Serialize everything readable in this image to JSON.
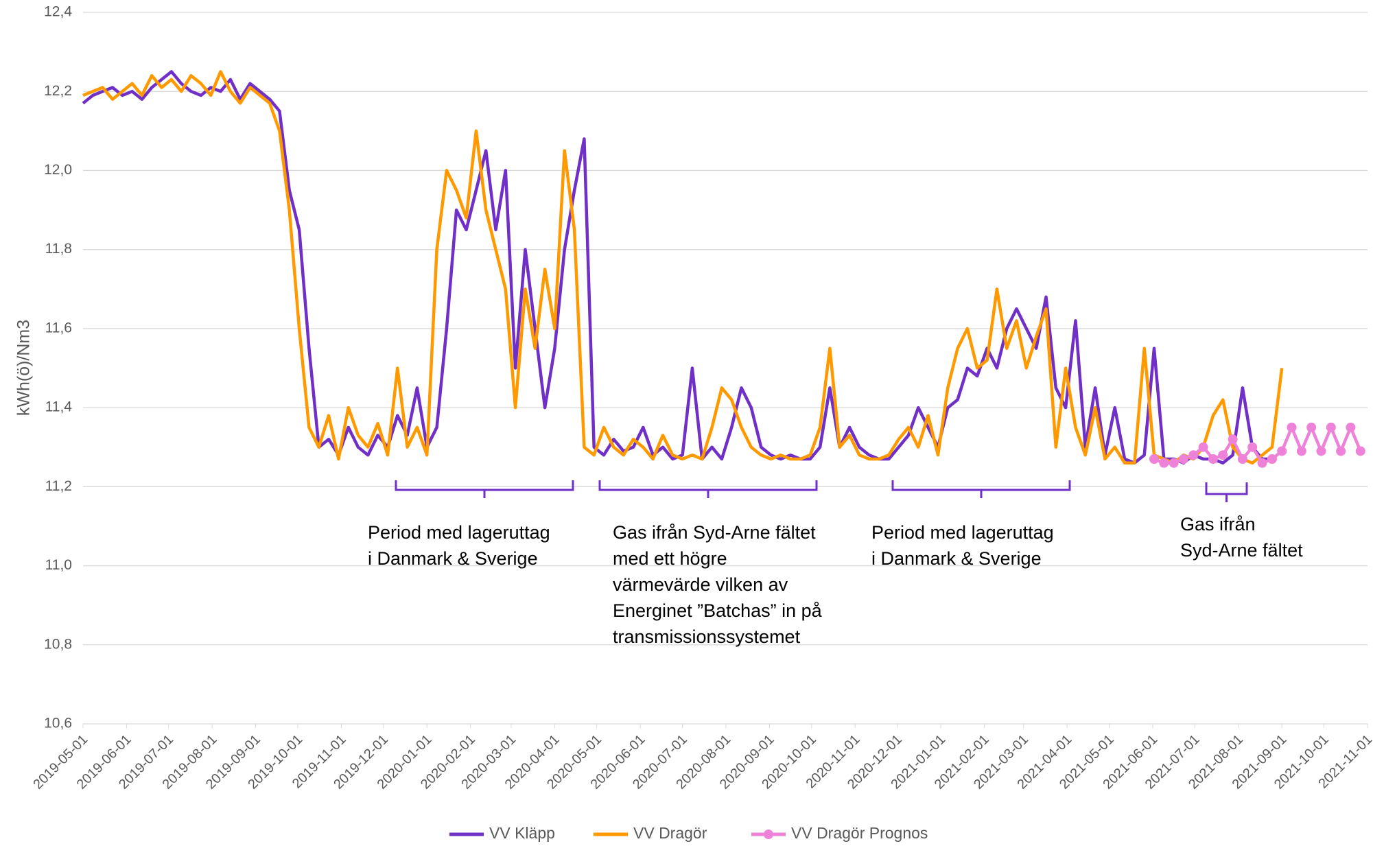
{
  "chart_data": {
    "type": "line",
    "y_label": "kWh(ö)/Nm3",
    "ylim": [
      10.6,
      12.4
    ],
    "yticks": [
      {
        "value": 10.6,
        "label": "10,6"
      },
      {
        "value": 10.8,
        "label": "10,8"
      },
      {
        "value": 11.0,
        "label": "11,0"
      },
      {
        "value": 11.2,
        "label": "11,2"
      },
      {
        "value": 11.4,
        "label": "11,4"
      },
      {
        "value": 11.6,
        "label": "11,6"
      },
      {
        "value": 11.8,
        "label": "11,8"
      },
      {
        "value": 12.0,
        "label": "12,0"
      },
      {
        "value": 12.2,
        "label": "12,2"
      },
      {
        "value": 12.4,
        "label": "12,4"
      }
    ],
    "xlim": [
      "2019-05-01",
      "2021-11-01"
    ],
    "xticks": [
      "2019-05-01",
      "2019-06-01",
      "2019-07-01",
      "2019-08-01",
      "2019-09-01",
      "2019-10-01",
      "2019-11-01",
      "2019-12-01",
      "2020-01-01",
      "2020-02-01",
      "2020-03-01",
      "2020-04-01",
      "2020-05-01",
      "2020-06-01",
      "2020-07-01",
      "2020-08-01",
      "2020-09-01",
      "2020-10-01",
      "2020-11-01",
      "2020-12-01",
      "2021-01-01",
      "2021-02-01",
      "2021-03-01",
      "2021-04-01",
      "2021-05-01",
      "2021-06-01",
      "2021-07-01",
      "2021-08-01",
      "2021-09-01",
      "2021-10-01",
      "2021-11-01"
    ],
    "grid": true,
    "legend": "bottom",
    "x": [
      "2019-05-01",
      "2019-05-08",
      "2019-05-15",
      "2019-05-22",
      "2019-05-29",
      "2019-06-05",
      "2019-06-12",
      "2019-06-19",
      "2019-06-26",
      "2019-07-03",
      "2019-07-10",
      "2019-07-17",
      "2019-07-24",
      "2019-07-31",
      "2019-08-07",
      "2019-08-14",
      "2019-08-21",
      "2019-08-28",
      "2019-09-04",
      "2019-09-11",
      "2019-09-18",
      "2019-09-25",
      "2019-10-02",
      "2019-10-09",
      "2019-10-16",
      "2019-10-23",
      "2019-10-30",
      "2019-11-06",
      "2019-11-13",
      "2019-11-20",
      "2019-11-27",
      "2019-12-04",
      "2019-12-11",
      "2019-12-18",
      "2019-12-25",
      "2020-01-01",
      "2020-01-08",
      "2020-01-15",
      "2020-01-22",
      "2020-01-29",
      "2020-02-05",
      "2020-02-12",
      "2020-02-19",
      "2020-02-26",
      "2020-03-04",
      "2020-03-11",
      "2020-03-18",
      "2020-03-25",
      "2020-04-01",
      "2020-04-08",
      "2020-04-15",
      "2020-04-22",
      "2020-04-29",
      "2020-05-06",
      "2020-05-13",
      "2020-05-20",
      "2020-05-27",
      "2020-06-03",
      "2020-06-10",
      "2020-06-17",
      "2020-06-24",
      "2020-07-01",
      "2020-07-08",
      "2020-07-15",
      "2020-07-22",
      "2020-07-29",
      "2020-08-05",
      "2020-08-12",
      "2020-08-19",
      "2020-08-26",
      "2020-09-02",
      "2020-09-09",
      "2020-09-16",
      "2020-09-23",
      "2020-09-30",
      "2020-10-07",
      "2020-10-14",
      "2020-10-21",
      "2020-10-28",
      "2020-11-04",
      "2020-11-11",
      "2020-11-18",
      "2020-11-25",
      "2020-12-02",
      "2020-12-09",
      "2020-12-16",
      "2020-12-23",
      "2020-12-30",
      "2021-01-06",
      "2021-01-13",
      "2021-01-20",
      "2021-01-27",
      "2021-02-03",
      "2021-02-10",
      "2021-02-17",
      "2021-02-24",
      "2021-03-03",
      "2021-03-10",
      "2021-03-17",
      "2021-03-24",
      "2021-03-31",
      "2021-04-07",
      "2021-04-14",
      "2021-04-21",
      "2021-04-28",
      "2021-05-05",
      "2021-05-12",
      "2021-05-19",
      "2021-05-26",
      "2021-06-02",
      "2021-06-09",
      "2021-06-16",
      "2021-06-23",
      "2021-06-30",
      "2021-07-07",
      "2021-07-14",
      "2021-07-21",
      "2021-07-28",
      "2021-08-04",
      "2021-08-11",
      "2021-08-18",
      "2021-08-25",
      "2021-09-01",
      "2021-09-08",
      "2021-09-15",
      "2021-09-22",
      "2021-09-29",
      "2021-10-06",
      "2021-10-13",
      "2021-10-20",
      "2021-10-27"
    ],
    "series": [
      {
        "name": "VV Kläpp",
        "color": "#7030c8",
        "marker": false,
        "values": [
          12.17,
          12.19,
          12.2,
          12.21,
          12.19,
          12.2,
          12.18,
          12.21,
          12.23,
          12.25,
          12.22,
          12.2,
          12.19,
          12.21,
          12.2,
          12.23,
          12.18,
          12.22,
          12.2,
          12.18,
          12.15,
          11.95,
          11.85,
          11.55,
          11.3,
          11.32,
          11.28,
          11.35,
          11.3,
          11.28,
          11.33,
          11.3,
          11.38,
          11.33,
          11.45,
          11.3,
          11.35,
          11.6,
          11.9,
          11.85,
          11.95,
          12.05,
          11.85,
          12.0,
          11.5,
          11.8,
          11.6,
          11.4,
          11.55,
          11.8,
          11.95,
          12.08,
          11.3,
          11.28,
          11.32,
          11.29,
          11.3,
          11.35,
          11.28,
          11.3,
          11.27,
          11.28,
          11.5,
          11.27,
          11.3,
          11.27,
          11.35,
          11.45,
          11.4,
          11.3,
          11.28,
          11.27,
          11.28,
          11.27,
          11.27,
          11.3,
          11.45,
          11.3,
          11.35,
          11.3,
          11.28,
          11.27,
          11.27,
          11.3,
          11.33,
          11.4,
          11.35,
          11.3,
          11.4,
          11.42,
          11.5,
          11.48,
          11.55,
          11.5,
          11.6,
          11.65,
          11.6,
          11.55,
          11.68,
          11.45,
          11.4,
          11.62,
          11.3,
          11.45,
          11.28,
          11.4,
          11.27,
          11.26,
          11.28,
          11.55,
          11.27,
          11.27,
          11.26,
          11.28,
          11.27,
          11.27,
          11.26,
          11.28,
          11.45,
          11.3,
          11.27,
          11.27,
          null,
          null,
          null,
          null,
          null,
          null,
          null,
          null,
          null
        ]
      },
      {
        "name": "VV Dragör",
        "color": "#ff9900",
        "marker": false,
        "values": [
          12.19,
          12.2,
          12.21,
          12.18,
          12.2,
          12.22,
          12.19,
          12.24,
          12.21,
          12.23,
          12.2,
          12.24,
          12.22,
          12.19,
          12.25,
          12.2,
          12.17,
          12.21,
          12.19,
          12.17,
          12.1,
          11.9,
          11.6,
          11.35,
          11.3,
          11.38,
          11.27,
          11.4,
          11.33,
          11.3,
          11.36,
          11.28,
          11.5,
          11.3,
          11.35,
          11.28,
          11.8,
          12.0,
          11.95,
          11.88,
          12.1,
          11.9,
          11.8,
          11.7,
          11.4,
          11.7,
          11.55,
          11.75,
          11.6,
          12.05,
          11.85,
          11.3,
          11.28,
          11.35,
          11.3,
          11.28,
          11.32,
          11.3,
          11.27,
          11.33,
          11.28,
          11.27,
          11.28,
          11.27,
          11.35,
          11.45,
          11.42,
          11.35,
          11.3,
          11.28,
          11.27,
          11.28,
          11.27,
          11.27,
          11.28,
          11.35,
          11.55,
          11.3,
          11.33,
          11.28,
          11.27,
          11.27,
          11.28,
          11.32,
          11.35,
          11.3,
          11.38,
          11.28,
          11.45,
          11.55,
          11.6,
          11.5,
          11.52,
          11.7,
          11.55,
          11.62,
          11.5,
          11.58,
          11.65,
          11.3,
          11.5,
          11.35,
          11.28,
          11.4,
          11.27,
          11.3,
          11.26,
          11.26,
          11.55,
          11.28,
          11.27,
          11.26,
          11.28,
          11.27,
          11.3,
          11.38,
          11.42,
          11.3,
          11.27,
          11.26,
          11.28,
          11.3,
          11.5,
          null,
          null,
          null,
          null,
          null,
          null,
          null,
          null
        ]
      },
      {
        "name": "VV Dragör Prognos",
        "color": "#ee82d8",
        "marker": true,
        "values": [
          null,
          null,
          null,
          null,
          null,
          null,
          null,
          null,
          null,
          null,
          null,
          null,
          null,
          null,
          null,
          null,
          null,
          null,
          null,
          null,
          null,
          null,
          null,
          null,
          null,
          null,
          null,
          null,
          null,
          null,
          null,
          null,
          null,
          null,
          null,
          null,
          null,
          null,
          null,
          null,
          null,
          null,
          null,
          null,
          null,
          null,
          null,
          null,
          null,
          null,
          null,
          null,
          null,
          null,
          null,
          null,
          null,
          null,
          null,
          null,
          null,
          null,
          null,
          null,
          null,
          null,
          null,
          null,
          null,
          null,
          null,
          null,
          null,
          null,
          null,
          null,
          null,
          null,
          null,
          null,
          null,
          null,
          null,
          null,
          null,
          null,
          null,
          null,
          null,
          null,
          null,
          null,
          null,
          null,
          null,
          null,
          null,
          null,
          null,
          null,
          null,
          null,
          null,
          null,
          null,
          null,
          null,
          null,
          null,
          11.27,
          11.26,
          11.26,
          11.27,
          11.28,
          11.3,
          11.27,
          11.28,
          11.32,
          11.27,
          11.3,
          11.26,
          11.27,
          11.29,
          11.35,
          11.29,
          11.35,
          11.29,
          11.35,
          11.29,
          11.35,
          11.29
        ]
      }
    ],
    "annotations": [
      {
        "lines": [
          "Period med lageruttag",
          "i Danmark & Sverige"
        ]
      },
      {
        "lines": [
          "Gas ifrån Syd-Arne fältet",
          "med ett högre",
          "värmevärde vilken av",
          "Energinet ”Batchas” in på",
          "transmissionssystemet"
        ]
      },
      {
        "lines": [
          "Period med lageruttag",
          "i Danmark & Sverige"
        ]
      },
      {
        "lines": [
          "Gas ifrån",
          "Syd-Arne fältet"
        ]
      }
    ]
  }
}
